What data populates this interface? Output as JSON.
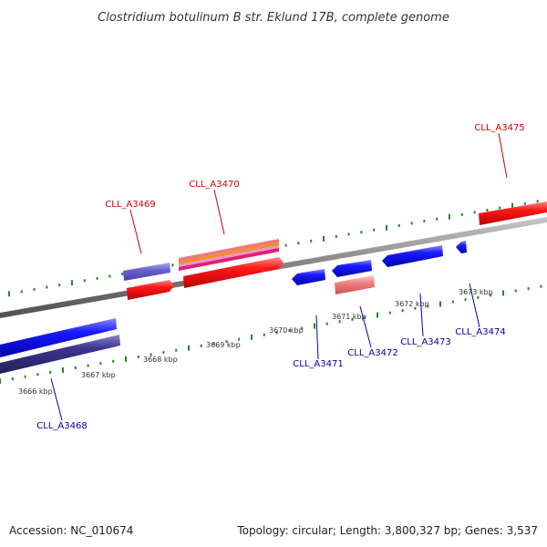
{
  "title": "Clostridium botulinum B str. Eklund 17B, complete genome",
  "footer": {
    "accession": "Accession: NC_010674",
    "summary": "Topology: circular; Length: 3,800,327 bp; Genes: 3,537"
  },
  "colors": {
    "forward_label": "#cc0000",
    "reverse_label": "#0000aa",
    "backbone": "#808080",
    "ticks": "#228822",
    "forward_gene": "#ff1010",
    "reverse_gene": "#1010ee",
    "overlap_gene": "#5a50c0",
    "pseudo_gene": "#f07070"
  },
  "scale": {
    "unit": "kbp",
    "ticks": [
      {
        "label": "3666 kbp"
      },
      {
        "label": "3667 kbp"
      },
      {
        "label": "3668 kbp"
      },
      {
        "label": "3669 kbp"
      },
      {
        "label": "3670 kbp"
      },
      {
        "label": "3671 kbp"
      },
      {
        "label": "3672 kbp"
      },
      {
        "label": "3673 kbp"
      }
    ]
  },
  "genes": {
    "forward": [
      {
        "name": "CLL_A3469"
      },
      {
        "name": "CLL_A3470"
      },
      {
        "name": "CLL_A3475"
      }
    ],
    "reverse": [
      {
        "name": "CLL_A3468"
      },
      {
        "name": "CLL_A3471"
      },
      {
        "name": "CLL_A3472"
      },
      {
        "name": "CLL_A3473"
      },
      {
        "name": "CLL_A3474"
      }
    ]
  }
}
